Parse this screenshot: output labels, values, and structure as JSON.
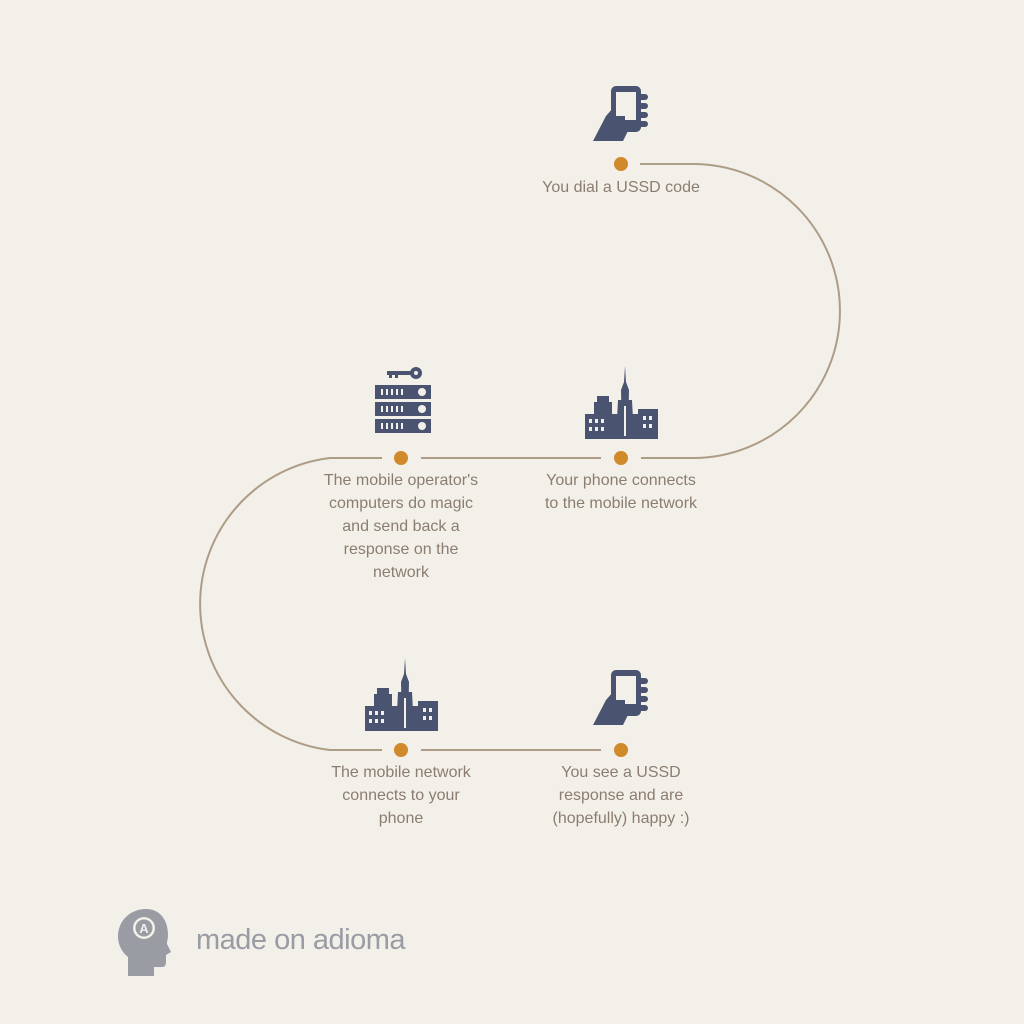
{
  "steps": [
    {
      "id": "dial",
      "icon": "phone-hand-icon",
      "lines": [
        "You dial a USSD code"
      ]
    },
    {
      "id": "connect",
      "icon": "city-tower-icon",
      "lines": [
        "Your phone connects",
        "to the mobile network"
      ]
    },
    {
      "id": "operator",
      "icon": "server-key-icon",
      "lines": [
        "The mobile operator's",
        "computers do magic",
        "and send back a",
        "response on the",
        "network"
      ]
    },
    {
      "id": "network",
      "icon": "city-tower-icon",
      "lines": [
        "The mobile network",
        "connects to your",
        "phone"
      ]
    },
    {
      "id": "response",
      "icon": "phone-hand-icon",
      "lines": [
        "You see a USSD",
        "response and are",
        "(hopefully) happy :)"
      ]
    }
  ],
  "branding": {
    "text": "made on adioma",
    "logo_icon": "head-logo-icon",
    "logo_letter": "A"
  },
  "colors": {
    "background": "#f3f0ea",
    "path": "#ad9d86",
    "dot": "#d08a2b",
    "icon": "#4a5470",
    "text": "#8b7d70",
    "brand": "#9a9ca4"
  }
}
